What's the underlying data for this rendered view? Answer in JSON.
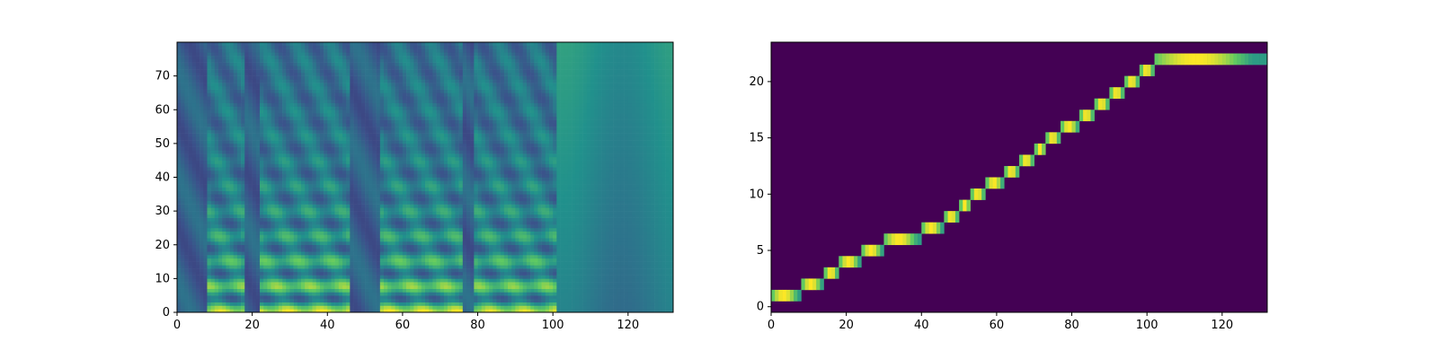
{
  "chart_data": [
    {
      "type": "heatmap",
      "title": "",
      "xlabel": "",
      "ylabel": "",
      "colormap": "viridis",
      "xlim": [
        0,
        132
      ],
      "ylim": [
        0,
        80
      ],
      "xticks": [
        0,
        20,
        40,
        60,
        80,
        100,
        120
      ],
      "yticks": [
        0,
        10,
        20,
        30,
        40,
        50,
        60,
        70
      ],
      "frames": 132,
      "bins": 80,
      "description_segments": [
        {
          "start": 8,
          "end": 17,
          "peak": 0.95
        },
        {
          "start": 22,
          "end": 45,
          "peak": 1.0
        },
        {
          "start": 54,
          "end": 75,
          "peak": 1.0
        },
        {
          "start": 79,
          "end": 100,
          "peak": 0.95
        }
      ]
    },
    {
      "type": "heatmap",
      "title": "",
      "xlabel": "",
      "ylabel": "",
      "colormap": "viridis",
      "xlim": [
        0,
        132
      ],
      "ylim": [
        -0.5,
        23.5
      ],
      "xticks": [
        0,
        20,
        40,
        60,
        80,
        100,
        120
      ],
      "yticks": [
        0,
        5,
        10,
        15,
        20
      ],
      "alignment_path": [
        {
          "x": 0,
          "y": 1
        },
        {
          "x": 8,
          "y": 2
        },
        {
          "x": 14,
          "y": 3
        },
        {
          "x": 18,
          "y": 4
        },
        {
          "x": 24,
          "y": 5
        },
        {
          "x": 30,
          "y": 6
        },
        {
          "x": 40,
          "y": 7
        },
        {
          "x": 46,
          "y": 8
        },
        {
          "x": 50,
          "y": 9
        },
        {
          "x": 53,
          "y": 10
        },
        {
          "x": 57,
          "y": 11
        },
        {
          "x": 62,
          "y": 12
        },
        {
          "x": 66,
          "y": 13
        },
        {
          "x": 70,
          "y": 14
        },
        {
          "x": 73,
          "y": 15
        },
        {
          "x": 77,
          "y": 16
        },
        {
          "x": 82,
          "y": 17
        },
        {
          "x": 86,
          "y": 18
        },
        {
          "x": 90,
          "y": 19
        },
        {
          "x": 94,
          "y": 20
        },
        {
          "x": 98,
          "y": 21
        },
        {
          "x": 102,
          "y": 22
        },
        {
          "x": 132,
          "y": 22
        }
      ]
    }
  ]
}
